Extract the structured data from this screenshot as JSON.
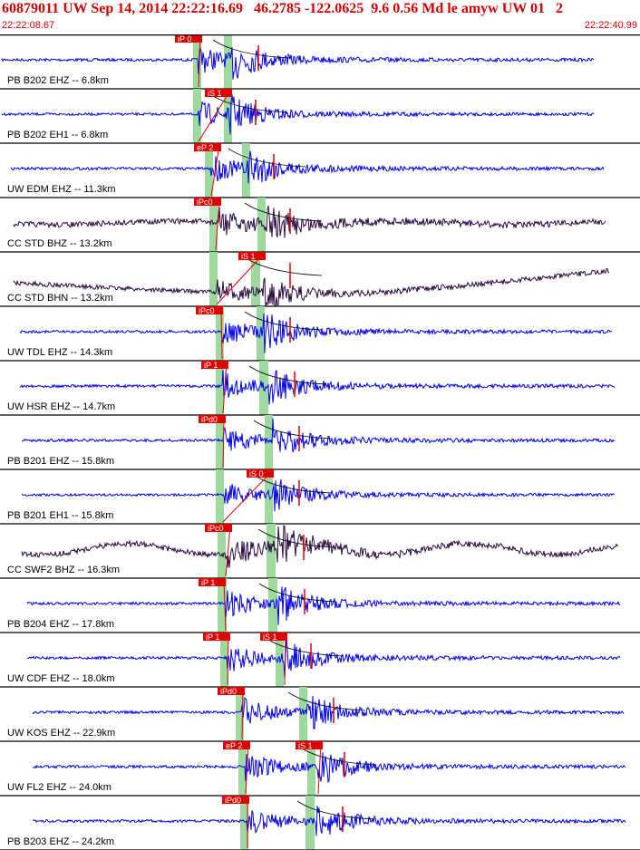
{
  "header": {
    "title": "60879011 UW Sep 14, 2014 22:22:16.69   46.2785 -122.0625  9.6 0.56 Md le amyw UW 01   2",
    "start_time": "22:22:08.67",
    "end_time": "22:22:40.99"
  },
  "colors": {
    "wave_blue": "#0000ee",
    "wave_dark": "#2a0a40",
    "pick_red": "#e00000",
    "window_green": "#9ed99e"
  },
  "traces": [
    {
      "label": "PB B202 EHZ -- 6.8km",
      "picks": [
        "iP 0"
      ],
      "color": "blue"
    },
    {
      "label": "PB B202 EH1 -- 6.8km",
      "picks": [
        "iS 1"
      ],
      "color": "blue"
    },
    {
      "label": "UW EDM EHZ -- 11.3km",
      "picks": [
        "eP 2"
      ],
      "color": "blue"
    },
    {
      "label": "CC STD BHZ -- 13.2km",
      "picks": [
        "iPc0"
      ],
      "color": "dark"
    },
    {
      "label": "CC STD BHN -- 13.2km",
      "picks": [
        "iS 1"
      ],
      "color": "dark"
    },
    {
      "label": "UW TDL EHZ -- 14.3km",
      "picks": [
        "iPc0"
      ],
      "color": "blue"
    },
    {
      "label": "UW HSR EHZ -- 14.7km",
      "picks": [
        "iP 1"
      ],
      "color": "blue"
    },
    {
      "label": "PB B201 EHZ -- 15.8km",
      "picks": [
        "iPd0"
      ],
      "color": "blue"
    },
    {
      "label": "PB B201 EH1 -- 15.8km",
      "picks": [
        "iS 0"
      ],
      "color": "blue"
    },
    {
      "label": "CC SWF2 BHZ -- 16.3km",
      "picks": [
        "iPc0"
      ],
      "color": "dark"
    },
    {
      "label": "PB B204 EHZ -- 17.8km",
      "picks": [
        "iP 1"
      ],
      "color": "blue"
    },
    {
      "label": "UW CDF EHZ -- 18.0km",
      "picks": [
        "iP 1",
        "iS 1"
      ],
      "color": "blue"
    },
    {
      "label": "UW KOS EHZ -- 22.9km",
      "picks": [
        "iPd0"
      ],
      "color": "blue"
    },
    {
      "label": "UW FL2 EHZ -- 24.0km",
      "picks": [
        "eP 2",
        "iS 1"
      ],
      "color": "blue"
    },
    {
      "label": "PB B203 EHZ -- 24.2km",
      "picks": [
        "iPd0"
      ],
      "color": "blue"
    }
  ]
}
